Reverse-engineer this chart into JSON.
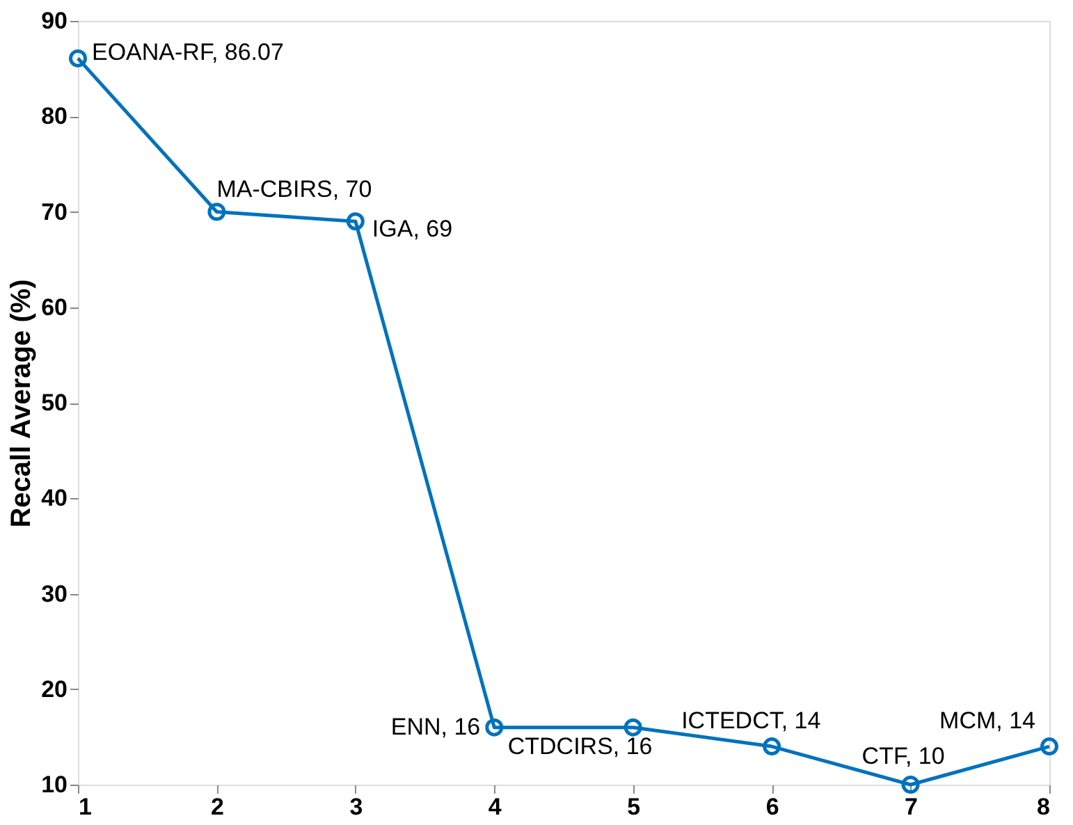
{
  "chart_data": {
    "type": "line",
    "ylabel": "Recall Average (%)",
    "x": [
      1,
      2,
      3,
      4,
      5,
      6,
      7,
      8
    ],
    "series": [
      {
        "color": "#0072bd",
        "values": [
          86.07,
          70,
          69,
          16,
          16,
          14,
          10,
          14
        ]
      }
    ],
    "xlim": [
      1,
      8
    ],
    "xticks": [
      1,
      2,
      3,
      4,
      5,
      6,
      7,
      8
    ],
    "ylim": [
      10,
      90
    ],
    "yticks": [
      10,
      20,
      30,
      40,
      50,
      60,
      70,
      80,
      90
    ],
    "marker": "circle",
    "line_style": "solid",
    "annotations": [
      {
        "text": "EOANA-RF, 86.07",
        "x": 1,
        "y": 86.07
      },
      {
        "text": "MA-CBIRS, 70",
        "x": 2,
        "y": 70
      },
      {
        "text": "IGA, 69",
        "x": 3,
        "y": 69
      },
      {
        "text": "ENN, 16",
        "x": 4,
        "y": 16
      },
      {
        "text": "CTDCIRS, 16",
        "x": 5,
        "y": 16
      },
      {
        "text": "ICTEDCT, 14",
        "x": 6,
        "y": 14
      },
      {
        "text": "CTF, 10",
        "x": 7,
        "y": 10
      },
      {
        "text": "MCM, 14",
        "x": 8,
        "y": 14
      }
    ]
  }
}
